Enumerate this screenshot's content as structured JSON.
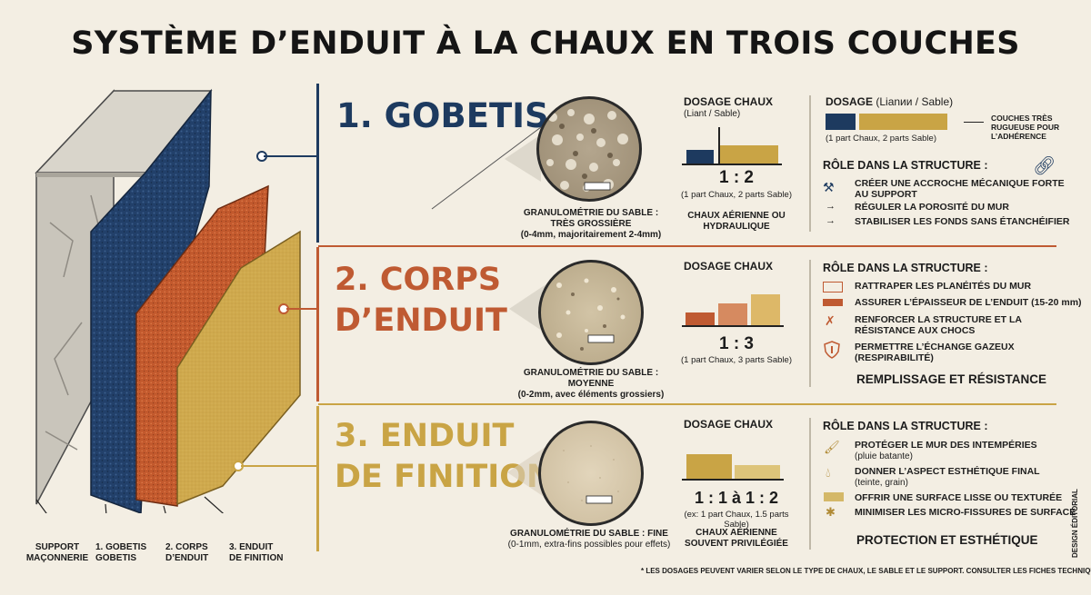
{
  "title": "SYSTÈME D’ENDUIT À LA CHAUX EN TROIS COUCHES",
  "wall_labels": [
    {
      "text": "SUPPORT\nMAÇONNERIE"
    },
    {
      "text": "1. GOBETIS\nGOBETIS"
    },
    {
      "text": "2. CORPS\nD’ENDUIT"
    },
    {
      "text": "3. ENDUIT\nDE FINITION"
    }
  ],
  "colors": {
    "navy": "#1d3a5f",
    "rust": "#bf5a32",
    "ochre": "#c9a445",
    "stone": "#c9c5bb"
  },
  "layers": [
    {
      "title": "1. GOBETIS",
      "color": "#1d3a5f",
      "granulo_title": "GRANULOMÉTRIE DU SABLE :",
      "granulo_sub": "TRÈS GROSSIÈRE",
      "granulo_detail": "(0-4mm, majoritairement 2-4mm)",
      "dosage_title": "DOSAGE CHAUX",
      "dosage_sub": "(Liant / Sable)",
      "ratio": "1 : 2",
      "ratio_detail": "(1 part Chaux, 2 parts Sable)",
      "chaux_type": "CHAUX AÉRIENNE OU\nHYDRAULIQUE",
      "dosage2_title": "DOSAGE",
      "dosage2_sub": "(Lianᴎᴎ / Sable)",
      "dosage2_detail": "(1 part Chaux, 2 parts Sable)",
      "dosage2_note": "COUCHES TRÈS\nRUGUEUSE POUR\nL’ADHÉRENCE",
      "role_title": "RÔLE DANS LA STRUCTURE :",
      "roles": [
        "CRÉER UNE ACCROCHE MÉCANIQUE FORTE\nAU SUPPORT",
        "RÉGULER LA POROSITÉ DU MUR",
        "STABILISER LES FONDS SANS ÉTANCHÉIFIER"
      ]
    },
    {
      "title": "2. CORPS\nD’ENDUIT",
      "color": "#bf5a32",
      "granulo_title": "GRANULOMÉTRIE DU SABLE : MOYENNE",
      "granulo_detail": "(0-2mm, avec éléments grossiers)",
      "dosage_title": "DOSAGE CHAUX",
      "ratio": "1 : 3",
      "ratio_detail": "(1 part Chaux, 3 parts Sable)",
      "role_title": "RÔLE DANS LA STRUCTURE :",
      "roles": [
        "RATTRAPER LES PLANÉITÉS DU MUR",
        "ASSURER L’ÉPAISSEUR DE L’ENDUIT (15-20 mm)",
        "RENFORCER LA STRUCTURE ET LA\nRÉSISTANCE AUX CHOCS",
        "PERMETTRE L’ÉCHANGE GAZEUX\n(RESPIRABILITÉ)"
      ],
      "summary": "REMPLISSAGE ET RÉSISTANCE"
    },
    {
      "title": "3. ENDUIT\nDE FINITION",
      "color": "#c9a445",
      "granulo_title": "GRANULOMÉTRIE DU SABLE : FINE",
      "granulo_detail": "(0-1mm, extra-fins possibles pour effets)",
      "dosage_title": "DOSAGE CHAUX",
      "ratio": "1 : 1 à 1 : 2",
      "ratio_detail": "(ex: 1 part Chaux, 1.5 parts Sable)",
      "chaux_type": "CHAUX AÉRIENNE\nSOUVENT PRIVILÉGIÉE",
      "role_title": "RÔLE DANS LA STRUCTURE :",
      "roles": [
        {
          "main": "PROTÉGER LE MUR DES INTEMPÉRIES",
          "sub": "(pluie batante)"
        },
        {
          "main": "DONNER L’ASPECT ESTHÉTIQUE FINAL",
          "sub": "(teinte, grain)"
        },
        {
          "main": "OFFRIR UNE SURFACE LISSE OU TEXTURÉE",
          "sub": ""
        },
        {
          "main": "MINIMISER LES MICRO-FISSURES DE SURFACE",
          "sub": ""
        }
      ],
      "summary": "PROTECTION ET ESTHÉTIQUE"
    }
  ],
  "side_credit": "DESIGN ÉDITORIAL",
  "footnote": "* LES DOSAGES PEUVENT VARIER SELON LE TYPE DE CHAUX, LE SABLE ET LE SUPPORT. CONSULTER LES FICHES TECHNIQUES."
}
